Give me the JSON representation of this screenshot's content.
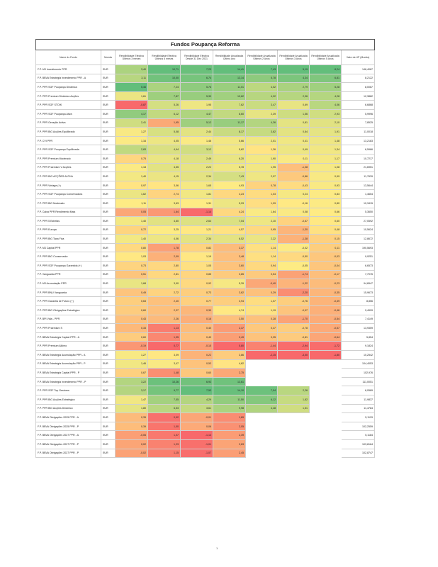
{
  "title": "Fundos Poupança Reforma",
  "page_number": "1",
  "headers": [
    "Nome do Fundo",
    "Moeda",
    "Rendibilidade Efectiva Últimos 3 meses",
    "Rendibilidade Efectiva Últimos 6 meses",
    "Rendibilidade Efectiva Desde 31 Dez 2021",
    "Rendibilidade Anualizada Último Ano",
    "Rendibilidade Anualizada Últimos 2 Anos",
    "Rendibilidade Anualizada Últimos 3 Anos",
    "Rendibilidade Anualizada Últimos 5 Anos",
    "Valor da UP (Moeda)"
  ],
  "rows": [
    [
      "F.P. M3 Investimento PPR",
      "EUR",
      "3,40",
      "10,71",
      "7,23",
      "14,41",
      "7,43",
      "5,19",
      "8,24",
      "146,4067"
    ],
    [
      "F.P. BBVA Estratégia Investimento PPR - A",
      "EUR",
      "3,11",
      "10,00",
      "6,74",
      "13,14",
      "5,78",
      "4,34",
      "6,81",
      "8,2122"
    ],
    [
      "F.P. PPR SGF Poupança Dinâmica",
      "EUR",
      "5,46",
      "7,24",
      "5,76",
      "11,01",
      "4,02",
      "2,79",
      "5,28",
      "8,0067"
    ],
    [
      "F.P. PPR Premium Dinâmico Acções",
      "EUR",
      "1,61",
      "7,87",
      "5,39",
      "10,62",
      "4,22",
      "2,36",
      "4,28",
      "12,3882"
    ],
    [
      "F.P. PPR SGF STOIK",
      "EUR",
      "-0,87",
      "5,26",
      "1,95",
      "7,62",
      "3,47",
      "0,69",
      "4,06",
      "6,6868"
    ],
    [
      "F.P. PPR SGF Poupança Ativa",
      "EUR",
      "4,17",
      "6,12",
      "4,47",
      "8,60",
      "2,39",
      "1,56",
      "2,93",
      "5,9996"
    ],
    [
      "F.P. PPR Geração Activa",
      "EUR",
      "2,41",
      "1,95",
      "5,12",
      "11,17",
      "4,36",
      "0,81",
      "2,10",
      "7,8525"
    ],
    [
      "F.P. PPR BiG Acções Equilibrado",
      "EUR",
      "1,27",
      "5,08",
      "2,44",
      "8,17",
      "3,62",
      "0,84",
      "1,91",
      "11,0018"
    ],
    [
      "F.P. CVI PPR",
      "EUR",
      "1,16",
      "4,05",
      "1,46",
      "5,66",
      "2,01",
      "0,41",
      "1,48",
      "13,2183"
    ],
    [
      "F.P. PPR SGF Poupança Equilibrada",
      "EUR",
      "2,83",
      "4,94",
      "3,12",
      "5,62",
      "1,26",
      "0,49",
      "1,34",
      "6,5966"
    ],
    [
      "F.P. PPR Premium Moderado",
      "EUR",
      "0,75",
      "4,18",
      "2,49",
      "6,20",
      "1,90",
      "0,11",
      "1,17",
      "10,7217"
    ],
    [
      "F.P. PPR Praemium V Acções",
      "EUR",
      "1,18",
      "4,55",
      "2,22",
      "5,78",
      "1,95",
      "-1,08",
      "1,08",
      "21,6951"
    ],
    [
      "F.P. PPR BIG ACÇÕES ALPHA",
      "EUR",
      "1,40",
      "4,15",
      "2,34",
      "7,43",
      "2,07",
      "-0,86",
      "0,99",
      "11,7639"
    ],
    [
      "F.P. PPR Vintage (+)",
      "EUR",
      "0,97",
      "3,06",
      "1,65",
      "4,93",
      "0,78",
      "-0,43",
      "0,93",
      "13,5644"
    ],
    [
      "F.P. PPR SGF Poupança Conservadora",
      "EUR",
      "1,62",
      "2,74",
      "1,81",
      "4,23",
      "1,03",
      "0,24",
      "0,83",
      "1,4654"
    ],
    [
      "F.P. PPR BiG Moderado",
      "EUR",
      "1,11",
      "3,63",
      "1,31",
      "5,93",
      "1,09",
      "-0,16",
      "0,80",
      "10,3415"
    ],
    [
      "F.P. Caixa PPR Rendimento Mais",
      "EUR",
      "0,05",
      "1,64",
      "-1,14",
      "4,24",
      "1,64",
      "0,08",
      "0,66",
      "5,3650"
    ],
    [
      "F.P. PPR 5 Estrelas",
      "EUR",
      "1,40",
      "4,60",
      "2,64",
      "7,04",
      "2,10",
      "-0,67",
      "0,60",
      "27,0592"
    ],
    [
      "F.P. PPR Europa",
      "EUR",
      "0,72",
      "3,25",
      "1,21",
      "4,57",
      "0,95",
      "-1,30",
      "0,48",
      "10,5624"
    ],
    [
      "F.P. PPR BiG Taxa Fixa",
      "EUR",
      "1,40",
      "4,06",
      "2,34",
      "6,52",
      "2,22",
      "-1,38",
      "0,15",
      "12,8672"
    ],
    [
      "F.P. M3 Capital PPR",
      "EUR",
      "0,80",
      "1,78",
      "0,82",
      "3,37",
      "1,14",
      "-0,02",
      "0,11",
      "190,5693"
    ],
    [
      "F.P. PPR BiG Conservador",
      "EUR",
      "1,03",
      "2,09",
      "1,19",
      "3,48",
      "1,14",
      "-0,50",
      "-0,03",
      "9,9251"
    ],
    [
      "F.P. PPR SGF Poupança Garantida (+)",
      "EUR",
      "0,73",
      "2,80",
      "1,05",
      "3,60",
      "0,94",
      "-0,05",
      "-0,04",
      "6,6573"
    ],
    [
      "F.P. Vanguarda PPR",
      "EUR",
      "0,51",
      "2,81",
      "0,85",
      "3,85",
      "0,54",
      "-1,74",
      "-0,17",
      "7,7076"
    ],
    [
      "F.P. M3 Acumulação PPR",
      "EUR",
      "1,68",
      "3,90",
      "0,92",
      "5,39",
      "-0,40",
      "-1,32",
      "-0,23",
      "94,6547"
    ],
    [
      "F.P. PPR BNU Vanguarda",
      "EUR",
      "0,49",
      "2,72",
      "0,73",
      "3,62",
      "0,29",
      "-2,20",
      "-0,35",
      "15,9673"
    ],
    [
      "F.P. PPR Garantia de Futuro (+)",
      "EUR",
      "0,63",
      "2,40",
      "0,77",
      "3,94",
      "1,07",
      "-0,76",
      "-0,39",
      "8,856"
    ],
    [
      "F.P. PPR BiG Obrigações Estratégico",
      "EUR",
      "0,60",
      "2,37",
      "0,30",
      "4,74",
      "1,19",
      "-0,97",
      "-0,46",
      "9,4999"
    ],
    [
      "F.P. BPI Vida - PPR",
      "EUR",
      "0,43",
      "2,26",
      "0,16",
      "3,50",
      "0,28",
      "-1,70",
      "-0,54",
      "7,4149"
    ],
    [
      "F.P. PPR Praemium S",
      "EUR",
      "0,33",
      "1,13",
      "0,40",
      "2,37",
      "0,47",
      "-0,78",
      "-0,57",
      "13,9359"
    ],
    [
      "F.P. BBVA Estratégia Capital PPR - A",
      "EUR",
      "0,60",
      "1,35",
      "0,49",
      "2,49",
      "0,35",
      "-0,81",
      "-0,64",
      "5,854"
    ],
    [
      "F.P. PPR Premium Alkimo",
      "EUR",
      "-0,19",
      "0,77",
      "-0,15",
      "0,80",
      "-1,44",
      "-2,94",
      "-1,72",
      "9,1824"
    ],
    [
      "F.P. BBVA Estratégia Acumulação PPR - A",
      "EUR",
      "1,27",
      "3,09",
      "0,22",
      "3,86",
      "-2,15",
      "-3,00",
      "-1,80",
      "10,2542"
    ],
    [
      "F.P. BBVA Estratégia Acumulação PPR - P",
      "EUR",
      "1,46",
      "3,47",
      "0,53",
      "4,62",
      "",
      "",
      "",
      "104,4053"
    ],
    [
      "F.P. BBVA Estratégia Capital PPR - P",
      "EUR",
      "0,67",
      "1,48",
      "0,60",
      "2,75",
      "",
      "",
      "",
      "102,976"
    ],
    [
      "F.P. BBVA Estratégia Investimento PPR - P",
      "EUR",
      "3,22",
      "10,26",
      "6,93",
      "13,61",
      "",
      "",
      "",
      "111,0051"
    ],
    [
      "F.P. PPR SGF Top Gestores",
      "EUR",
      "3,17",
      "9,77",
      "7,53",
      "14,10",
      "7,04",
      "2,26",
      "",
      "6,0589"
    ],
    [
      "F.P. PPR BiG Acções Estratégico",
      "EUR",
      "1,47",
      "7,55",
      "4,29",
      "11,50",
      "6,12",
      "1,82",
      "",
      "11,9837"
    ],
    [
      "F.P. PPR BiG Acções Dinâmico",
      "EUR",
      "1,80",
      "6,53",
      "3,61",
      "9,98",
      "4,48",
      "1,51",
      "",
      "11,4784"
    ],
    [
      "F.P. BBVA Obrigações 2025 PPR - A",
      "EUR",
      "0,35",
      "0,92",
      "-0,01",
      "1,89",
      "",
      "",
      "",
      "5,1129"
    ],
    [
      "F.P. BBVA Obrigações 2025 PPR - P",
      "EUR",
      "0,39",
      "1,00",
      "0,06",
      "2,05",
      "",
      "",
      "",
      "102,2559"
    ],
    [
      "F.P. BBVA Obrigações 2027 PPR - A",
      "EUR",
      "-0,06",
      "1,07",
      "-1,14",
      "2,39",
      "",
      "",
      "",
      "5,1184"
    ],
    [
      "F.P. BBVA Obrigações 2027 PPR - P",
      "EUR",
      "0,02",
      "1,23",
      "-1,01",
      "2,63",
      "",
      "",
      "",
      "103,8164"
    ],
    [
      "F.P. BBVA Obrigações 2027 PPR - P",
      "EUR",
      "-0,02",
      "1,15",
      "-1,07",
      "2,45",
      "",
      "",
      "",
      "102,8747"
    ]
  ]
}
